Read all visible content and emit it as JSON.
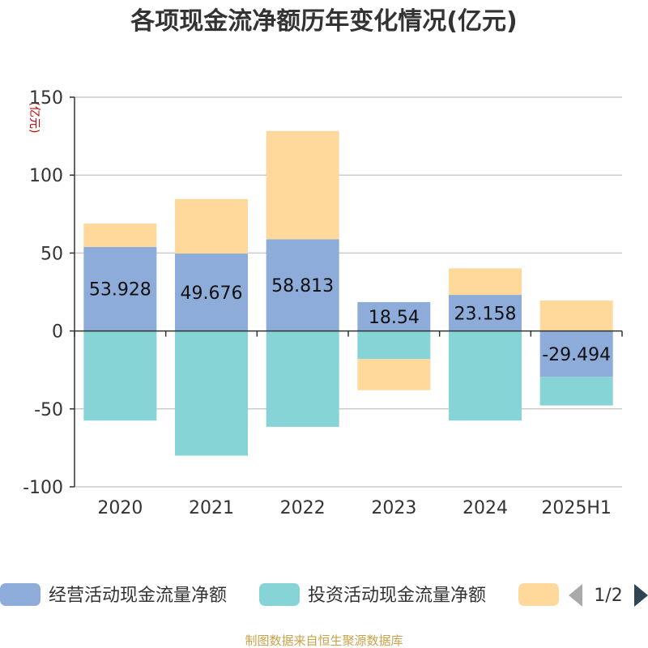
{
  "chart_data": {
    "type": "bar",
    "stacked": true,
    "title": "各项现金流净额历年变化情况(亿元)",
    "ylabel": "(亿元)",
    "categories": [
      "2020",
      "2021",
      "2022",
      "2023",
      "2024",
      "2025H1"
    ],
    "ylim": [
      -100,
      150
    ],
    "yticks": [
      150,
      100,
      50,
      0,
      -50,
      -100
    ],
    "grid": true,
    "legend_position": "bottom",
    "series": [
      {
        "name": "经营活动现金流量净额",
        "color": "#8eacd9",
        "values": [
          53.928,
          49.676,
          58.813,
          18.54,
          23.158,
          -29.494
        ],
        "show_labels": true
      },
      {
        "name": "投资活动现金流量净额",
        "color": "#86d4d6",
        "values": [
          -57.5,
          -80.0,
          -61.5,
          -18.0,
          -57.5,
          -18.3
        ]
      },
      {
        "name": "",
        "color": "#fed99b",
        "values": [
          15.0,
          35.0,
          69.5,
          -20.0,
          17.0,
          19.5
        ]
      }
    ],
    "legend_pager": "1/2"
  },
  "source": "制图数据来自恒生聚源数据库"
}
